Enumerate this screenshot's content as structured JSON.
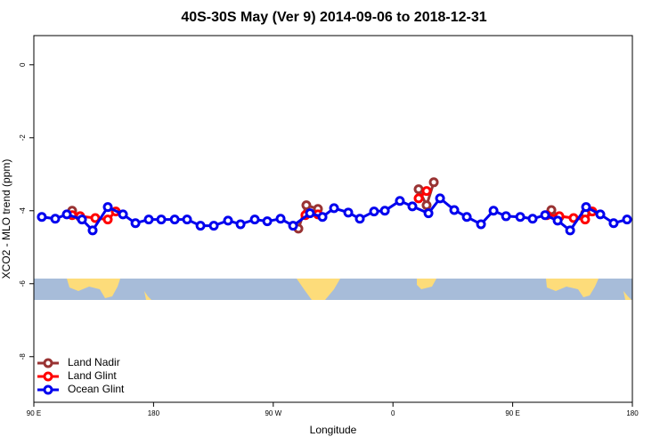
{
  "chart_data": {
    "type": "line",
    "title": "40S-30S May (Ver 9)   2014-09-06 to 2018-12-31",
    "x_label": "Longitude",
    "y_label": "XCO2 - MLO trend (ppm)",
    "xlim": [
      90,
      540
    ],
    "ylim": [
      -9.25,
      0.8
    ],
    "xticks": [
      {
        "value": 90,
        "label": "90 E"
      },
      {
        "value": 180,
        "label": "180"
      },
      {
        "value": 270,
        "label": "90 W"
      },
      {
        "value": 360,
        "label": "0"
      },
      {
        "value": 450,
        "label": "90 E"
      },
      {
        "value": 540,
        "label": "180"
      }
    ],
    "yticks": [
      0,
      -2,
      -4,
      -6,
      -8
    ],
    "legend": "bottom-left",
    "series": [
      {
        "name": "Land Nadir",
        "color": "#993333",
        "x": [
          118.8,
          124.8,
          null,
          288.9,
          294.9,
          303.6,
          null,
          379.3,
          385.3,
          390.7,
          null,
          479.1,
          485.1,
          null,
          504.5
        ],
        "values": [
          -4.0,
          -4.17,
          null,
          -4.49,
          -3.85,
          -3.95,
          null,
          -3.41,
          -3.85,
          -3.22,
          null,
          -3.98,
          -4.17,
          null,
          -4.07
        ]
      },
      {
        "name": "Land Glint",
        "color": "#ff0000",
        "x": [
          118.8,
          124.8,
          136.2,
          145.6,
          151.6,
          null,
          294.2,
          303.6,
          null,
          379.3,
          385.3,
          null,
          475.7,
          485.1,
          495.8,
          504.5,
          509.9
        ],
        "values": [
          -4.12,
          -4.15,
          -4.2,
          -4.24,
          -4.02,
          null,
          -4.12,
          -4.1,
          null,
          -3.66,
          -3.46,
          null,
          -4.12,
          -4.15,
          -4.2,
          -4.24,
          -4.02
        ]
      },
      {
        "name": "Ocean Glint",
        "color": "#0000ee",
        "x": [
          96.0,
          106.1,
          114.8,
          126.2,
          134.2,
          145.6,
          157.0,
          166.4,
          176.4,
          185.8,
          195.9,
          205.2,
          215.3,
          225.3,
          236.0,
          245.4,
          256.1,
          265.5,
          275.5,
          284.9,
          297.6,
          307.0,
          315.7,
          326.4,
          335.1,
          345.8,
          353.9,
          365.2,
          374.6,
          386.7,
          395.4,
          406.1,
          415.5,
          426.2,
          435.6,
          445.0,
          455.7,
          465.0,
          474.4,
          483.8,
          493.2,
          505.2,
          515.9,
          525.9,
          536.0
        ],
        "values": [
          -4.17,
          -4.22,
          -4.1,
          -4.24,
          -4.54,
          -3.9,
          -4.1,
          -4.34,
          -4.24,
          -4.24,
          -4.24,
          -4.24,
          -4.41,
          -4.41,
          -4.27,
          -4.37,
          -4.24,
          -4.29,
          -4.22,
          -4.41,
          -4.07,
          -4.17,
          -3.93,
          -4.05,
          -4.22,
          -4.02,
          -4.0,
          -3.73,
          -3.88,
          -4.07,
          -3.66,
          -3.98,
          -4.17,
          -4.37,
          -4.0,
          -4.15,
          -4.17,
          -4.22,
          -4.12,
          -4.27,
          -4.54,
          -3.9,
          -4.1,
          -4.34,
          -4.24
        ]
      }
    ]
  }
}
